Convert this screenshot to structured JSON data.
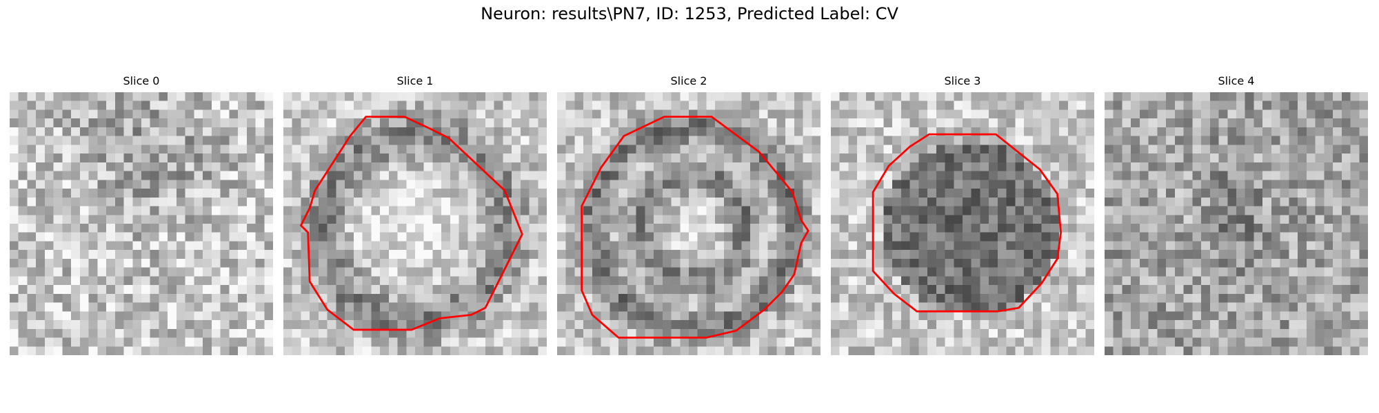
{
  "figure": {
    "title": "Neuron: results\\PN7, ID: 1253, Predicted Label: CV"
  },
  "contour_color": "#ff0000",
  "colormap": "gray",
  "slices": [
    {
      "title": "Slice 0",
      "has_contour": false
    },
    {
      "title": "Slice 1",
      "has_contour": true
    },
    {
      "title": "Slice 2",
      "has_contour": true
    },
    {
      "title": "Slice 3",
      "has_contour": true
    },
    {
      "title": "Slice 4",
      "has_contour": false
    }
  ]
}
